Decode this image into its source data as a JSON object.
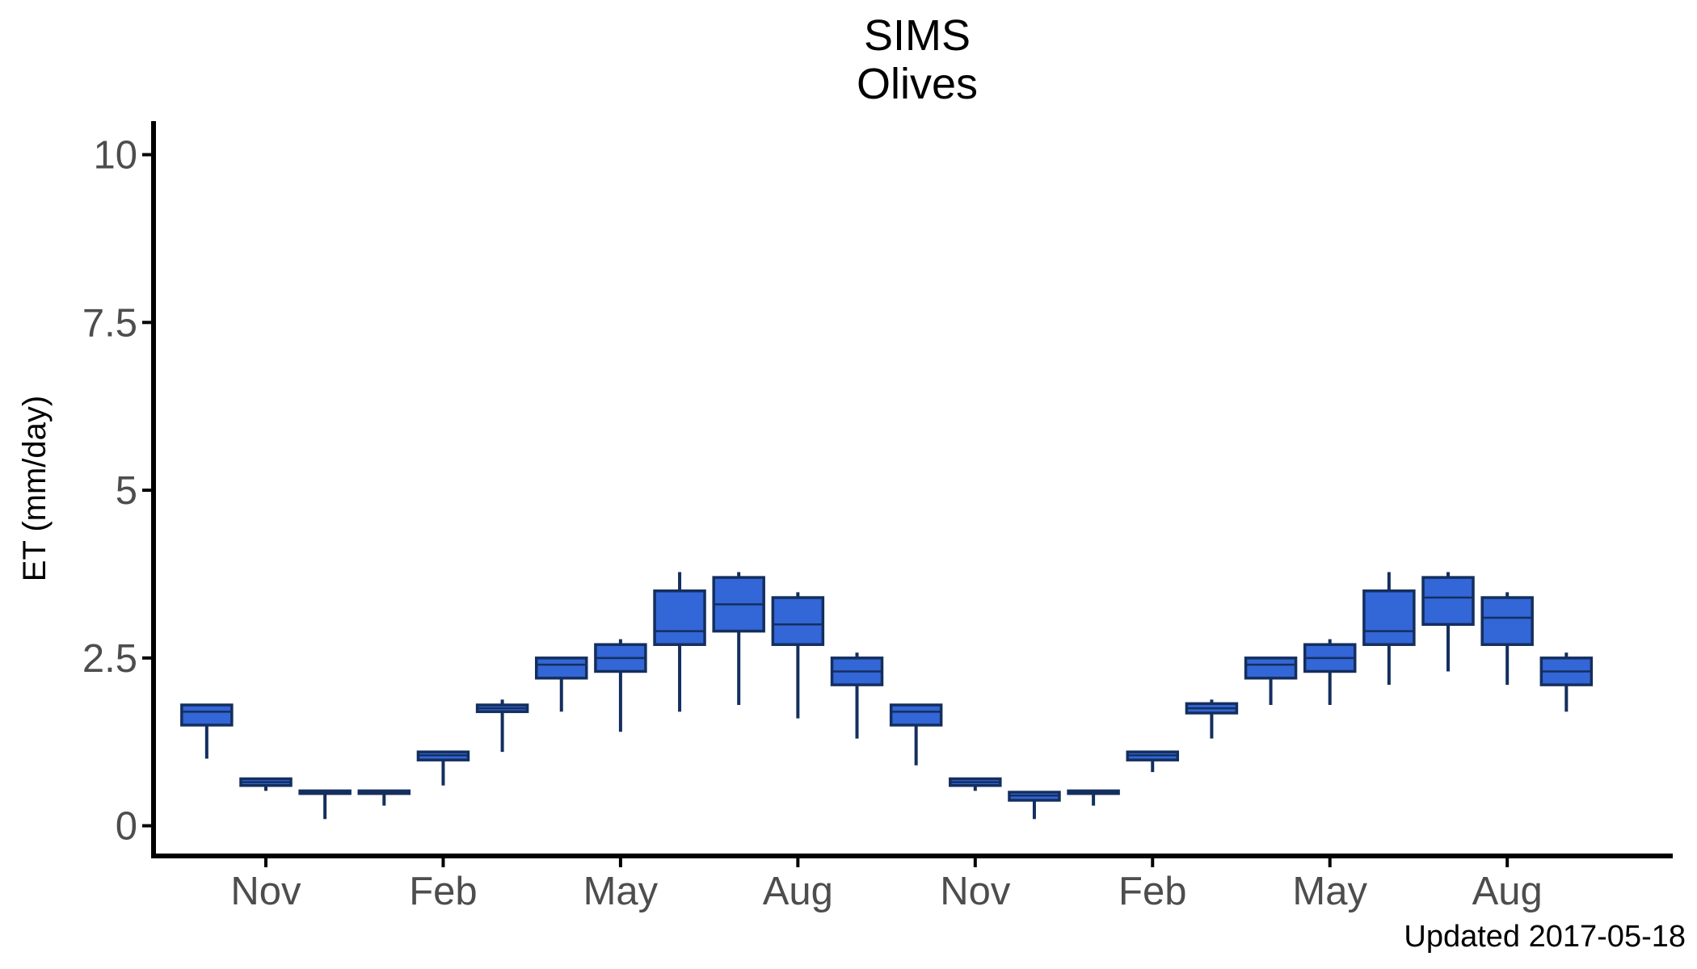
{
  "chart_data": {
    "type": "box",
    "title": [
      "SIMS",
      "Olives"
    ],
    "ylabel": "ET (mm/day)",
    "caption": "Updated  2017-05-18",
    "ylim": [
      -0.45,
      10.5
    ],
    "yticks": [
      0,
      2.5,
      5,
      7.5,
      10
    ],
    "ytick_labels": [
      "0",
      "2.5",
      "5",
      "7.5",
      "10"
    ],
    "xlim": [
      0.1,
      25.8
    ],
    "xticks": [
      2,
      5,
      8,
      11,
      14,
      17,
      20,
      23
    ],
    "xtick_labels": [
      "Nov",
      "Feb",
      "May",
      "Aug",
      "Nov",
      "Feb",
      "May",
      "Aug"
    ],
    "box_fill": "#3366d6",
    "box_line": "#142f5e",
    "boxes": [
      {
        "x": 1,
        "low": 1.0,
        "q1": 1.5,
        "median": 1.7,
        "q3": 1.8,
        "high": 1.8
      },
      {
        "x": 2,
        "low": 0.52,
        "q1": 0.6,
        "median": 0.65,
        "q3": 0.7,
        "high": 0.7
      },
      {
        "x": 3,
        "low": 0.1,
        "q1": 0.48,
        "median": 0.5,
        "q3": 0.52,
        "high": 0.52
      },
      {
        "x": 4,
        "low": 0.3,
        "q1": 0.48,
        "median": 0.5,
        "q3": 0.52,
        "high": 0.52
      },
      {
        "x": 5,
        "low": 0.6,
        "q1": 0.98,
        "median": 1.05,
        "q3": 1.1,
        "high": 1.1
      },
      {
        "x": 6,
        "low": 1.1,
        "q1": 1.7,
        "median": 1.75,
        "q3": 1.8,
        "high": 1.88
      },
      {
        "x": 7,
        "low": 1.7,
        "q1": 2.2,
        "median": 2.4,
        "q3": 2.5,
        "high": 2.5
      },
      {
        "x": 8,
        "low": 1.4,
        "q1": 2.3,
        "median": 2.5,
        "q3": 2.7,
        "high": 2.78
      },
      {
        "x": 9,
        "low": 1.7,
        "q1": 2.7,
        "median": 2.9,
        "q3": 3.5,
        "high": 3.78
      },
      {
        "x": 10,
        "low": 1.8,
        "q1": 2.9,
        "median": 3.3,
        "q3": 3.7,
        "high": 3.78
      },
      {
        "x": 11,
        "low": 1.6,
        "q1": 2.7,
        "median": 3.0,
        "q3": 3.4,
        "high": 3.48
      },
      {
        "x": 12,
        "low": 1.3,
        "q1": 2.1,
        "median": 2.3,
        "q3": 2.5,
        "high": 2.58
      },
      {
        "x": 13,
        "low": 0.9,
        "q1": 1.5,
        "median": 1.7,
        "q3": 1.8,
        "high": 1.8
      },
      {
        "x": 14,
        "low": 0.52,
        "q1": 0.6,
        "median": 0.65,
        "q3": 0.7,
        "high": 0.7
      },
      {
        "x": 15,
        "low": 0.1,
        "q1": 0.38,
        "median": 0.45,
        "q3": 0.5,
        "high": 0.5
      },
      {
        "x": 16,
        "low": 0.3,
        "q1": 0.48,
        "median": 0.5,
        "q3": 0.52,
        "high": 0.52
      },
      {
        "x": 17,
        "low": 0.8,
        "q1": 0.98,
        "median": 1.05,
        "q3": 1.1,
        "high": 1.1
      },
      {
        "x": 18,
        "low": 1.3,
        "q1": 1.68,
        "median": 1.75,
        "q3": 1.82,
        "high": 1.88
      },
      {
        "x": 19,
        "low": 1.8,
        "q1": 2.2,
        "median": 2.4,
        "q3": 2.5,
        "high": 2.5
      },
      {
        "x": 20,
        "low": 1.8,
        "q1": 2.3,
        "median": 2.5,
        "q3": 2.7,
        "high": 2.78
      },
      {
        "x": 21,
        "low": 2.1,
        "q1": 2.7,
        "median": 2.9,
        "q3": 3.5,
        "high": 3.78
      },
      {
        "x": 22,
        "low": 2.3,
        "q1": 3.0,
        "median": 3.4,
        "q3": 3.7,
        "high": 3.78
      },
      {
        "x": 23,
        "low": 2.1,
        "q1": 2.7,
        "median": 3.1,
        "q3": 3.4,
        "high": 3.48
      },
      {
        "x": 24,
        "low": 1.7,
        "q1": 2.1,
        "median": 2.3,
        "q3": 2.5,
        "high": 2.58
      }
    ]
  }
}
